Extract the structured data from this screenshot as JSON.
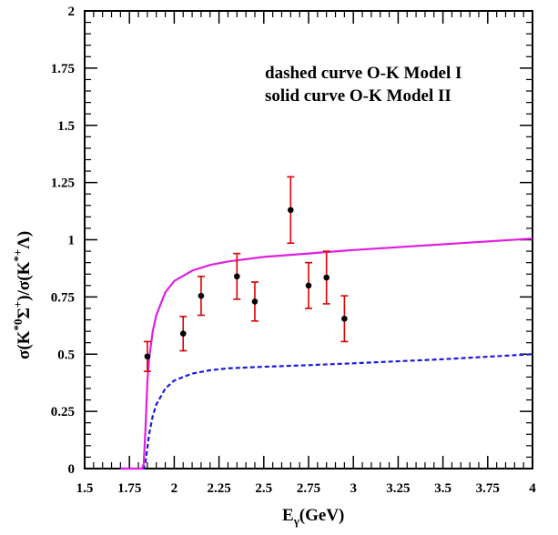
{
  "chart_data": {
    "type": "scatter",
    "xlim": [
      1.5,
      4
    ],
    "ylim": [
      0,
      2
    ],
    "x_ticks": [
      "1.5",
      "1.75",
      "2",
      "2.25",
      "2.5",
      "2.75",
      "3",
      "3.25",
      "3.5",
      "3.75",
      "4"
    ],
    "y_ticks": [
      "0",
      "0.25",
      "0.5",
      "0.75",
      "1",
      "1.25",
      "1.5",
      "1.75",
      "2"
    ],
    "xlabel": {
      "base": "E",
      "sub": "γ",
      "rest": "(GeV)"
    },
    "ylabel": "σ(K*0Σ+)/σ(K*+Λ)",
    "annotations": [
      "dashed curve O-K Model I",
      "solid curve O-K Model II"
    ],
    "colors": {
      "model_1": "#1a1adf",
      "model_2": "#e020e0",
      "error_bar": "#dd0000",
      "points": "#000000"
    },
    "data_points": [
      {
        "x": 1.85,
        "y": 0.49,
        "yerr": 0.065
      },
      {
        "x": 2.05,
        "y": 0.59,
        "yerr": 0.075
      },
      {
        "x": 2.15,
        "y": 0.755,
        "yerr": 0.085
      },
      {
        "x": 2.35,
        "y": 0.84,
        "yerr": 0.1
      },
      {
        "x": 2.45,
        "y": 0.73,
        "yerr": 0.085
      },
      {
        "x": 2.65,
        "y": 1.13,
        "yerr": 0.145
      },
      {
        "x": 2.75,
        "y": 0.8,
        "yerr": 0.1
      },
      {
        "x": 2.85,
        "y": 0.835,
        "yerr": 0.115
      },
      {
        "x": 2.95,
        "y": 0.655,
        "yerr": 0.1
      }
    ],
    "series": [
      {
        "style": "dashed",
        "x": [
          1.7,
          1.83,
          1.84,
          1.85,
          1.86,
          1.88,
          1.9,
          1.95,
          2.0,
          2.1,
          2.2,
          2.3,
          2.5,
          2.75,
          3.0,
          3.5,
          4.0
        ],
        "y": [
          0.0,
          0.0,
          0.03,
          0.09,
          0.15,
          0.23,
          0.28,
          0.35,
          0.385,
          0.415,
          0.43,
          0.438,
          0.445,
          0.452,
          0.46,
          0.478,
          0.5
        ]
      },
      {
        "style": "solid",
        "x": [
          1.7,
          1.82,
          1.83,
          1.84,
          1.85,
          1.86,
          1.88,
          1.9,
          1.95,
          2.0,
          2.1,
          2.2,
          2.3,
          2.5,
          2.75,
          3.0,
          3.5,
          4.0
        ],
        "y": [
          0.0,
          0.0,
          0.02,
          0.18,
          0.38,
          0.48,
          0.6,
          0.67,
          0.77,
          0.82,
          0.865,
          0.89,
          0.905,
          0.925,
          0.94,
          0.955,
          0.98,
          1.005
        ]
      }
    ]
  }
}
